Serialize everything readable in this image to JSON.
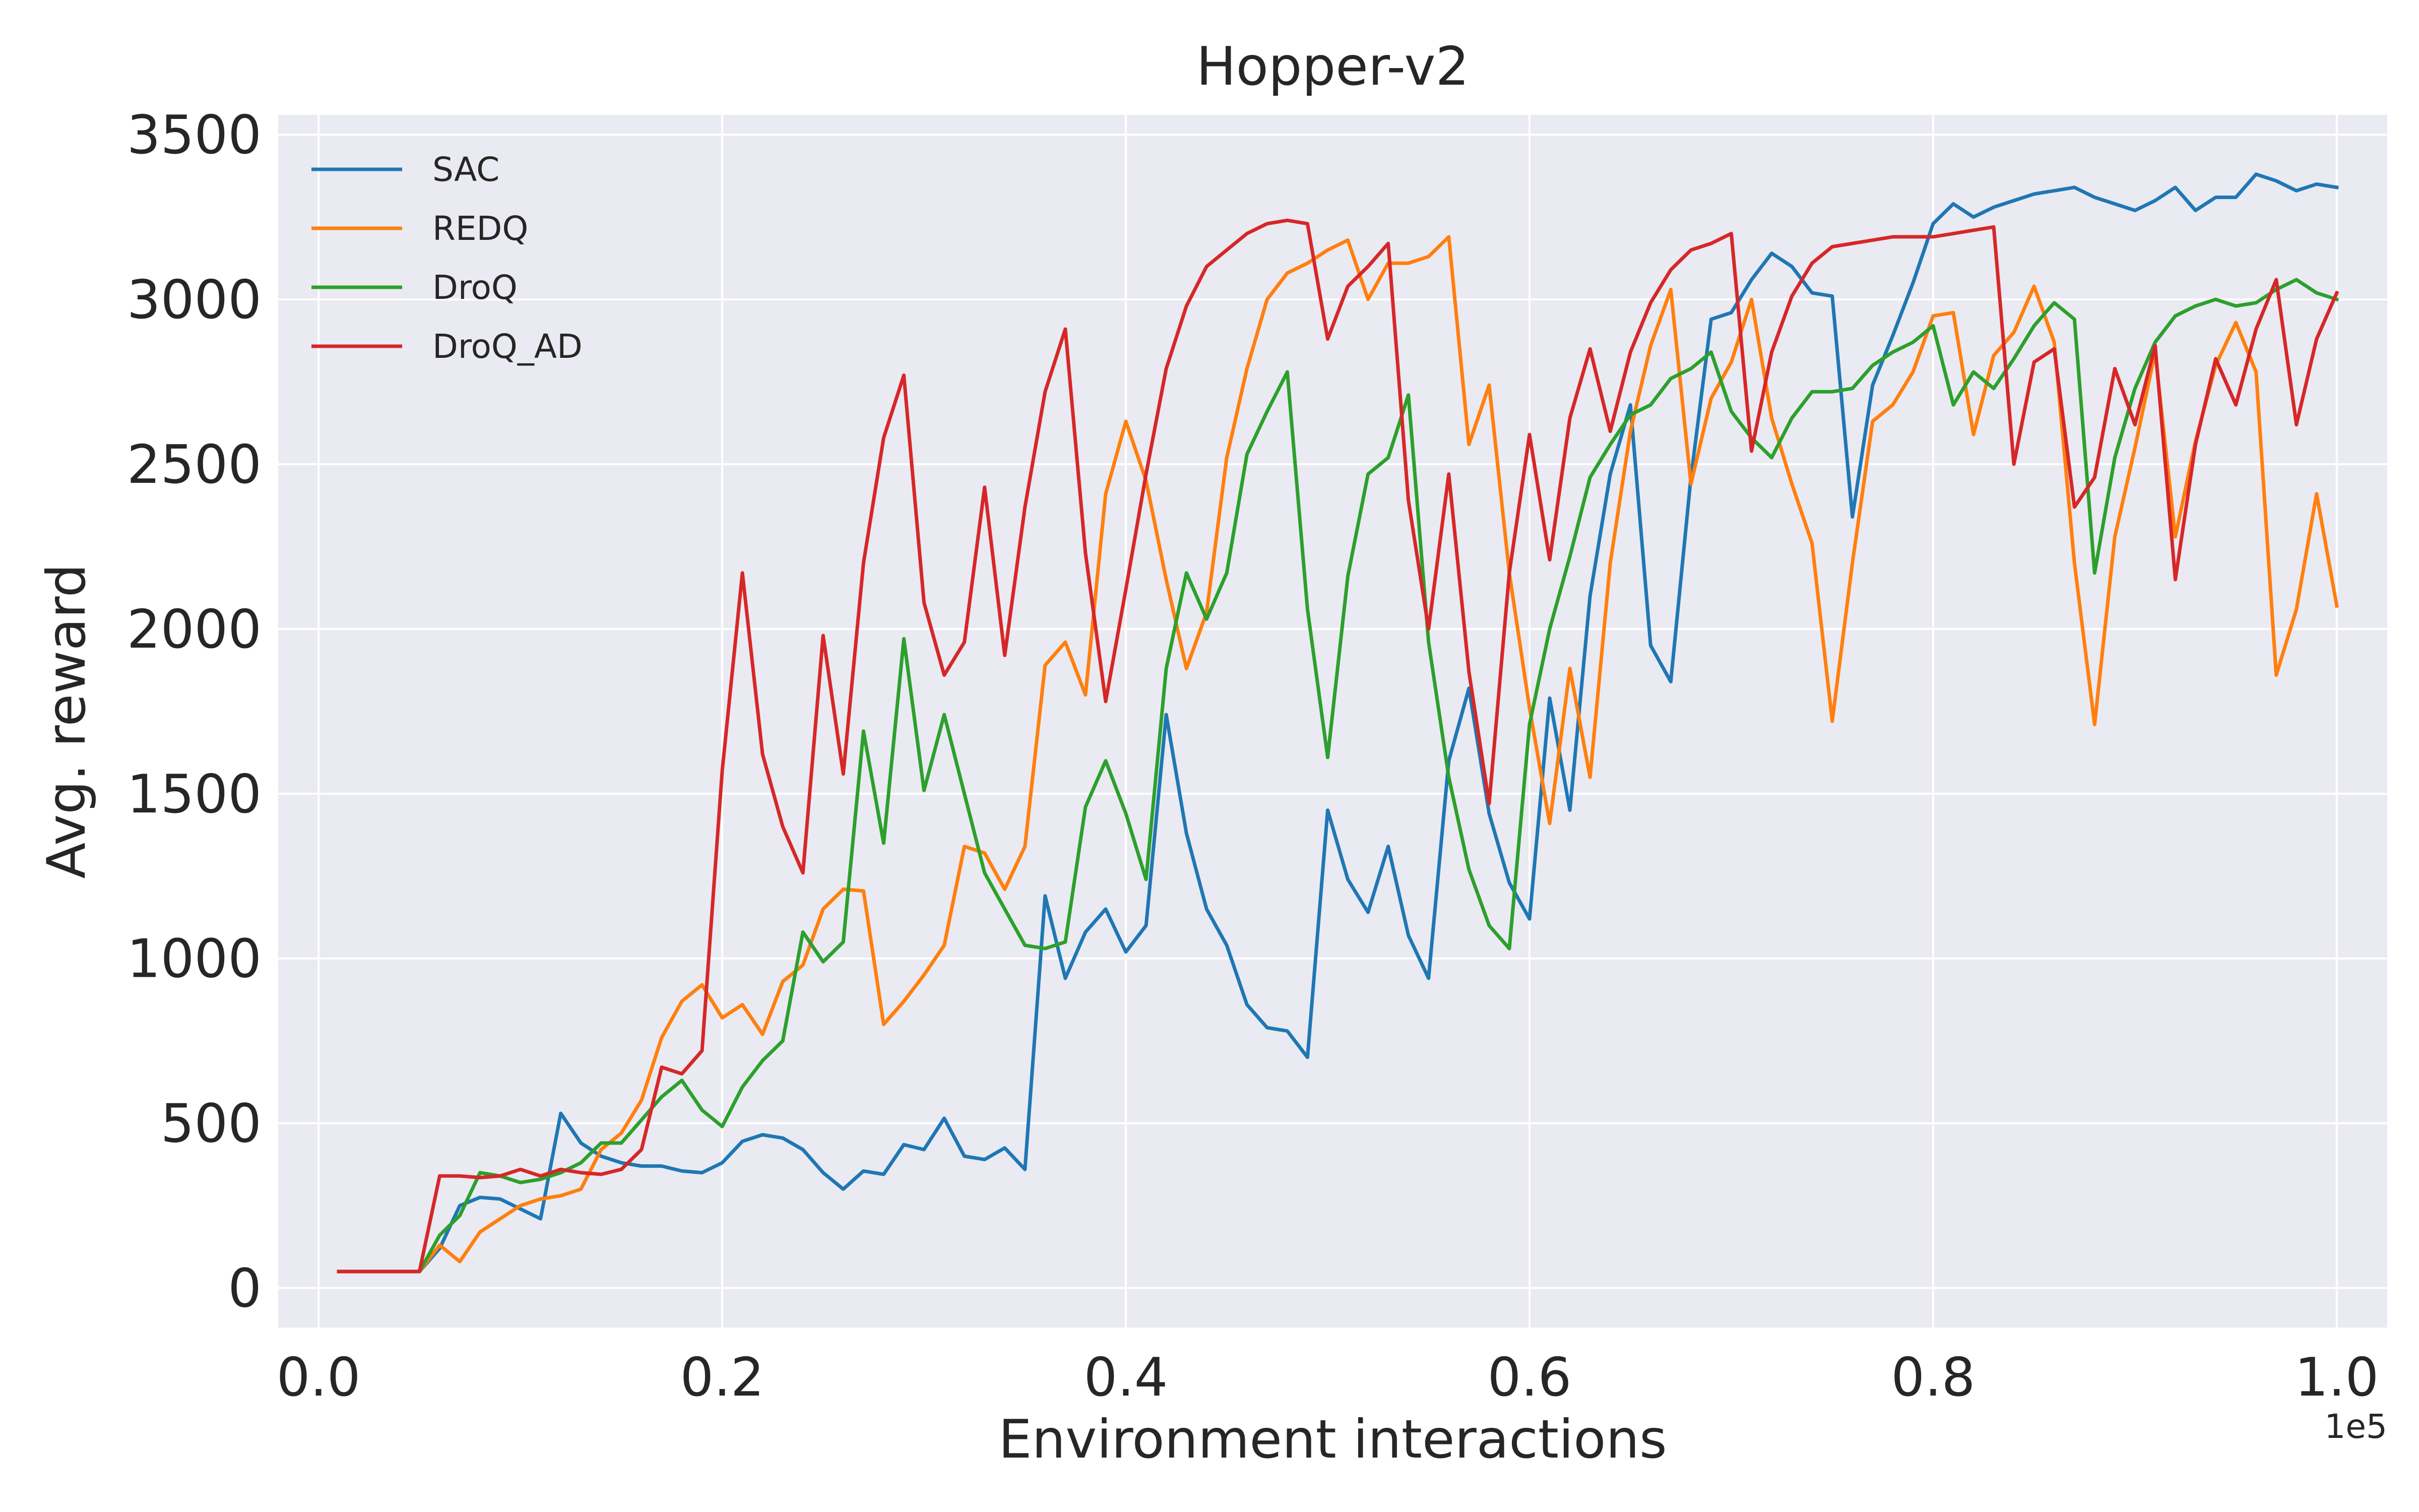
{
  "chart_data": {
    "type": "line",
    "title": "Hopper-v2",
    "xlabel": "Environment interactions",
    "ylabel": "Avg. reward",
    "x_offset_label": "1e5",
    "xlim": [
      -0.02,
      1.025
    ],
    "ylim": [
      -120,
      3560
    ],
    "x_ticks": [
      0.0,
      0.2,
      0.4,
      0.6,
      0.8,
      1.0
    ],
    "x_tick_labels": [
      "0.0",
      "0.2",
      "0.4",
      "0.6",
      "0.8",
      "1.0"
    ],
    "y_ticks": [
      0,
      500,
      1000,
      1500,
      2000,
      2500,
      3000,
      3500
    ],
    "y_tick_labels": [
      "0",
      "500",
      "1000",
      "1500",
      "2000",
      "2500",
      "3000",
      "3500"
    ],
    "grid": true,
    "legend_position": "top-left",
    "colors": {
      "background": "#eaeaf2",
      "grid": "#ffffff"
    },
    "x": [
      0.01,
      0.02,
      0.03,
      0.04,
      0.05,
      0.06,
      0.07,
      0.08,
      0.09,
      0.1,
      0.11,
      0.12,
      0.13,
      0.14,
      0.15,
      0.16,
      0.17,
      0.18,
      0.19,
      0.2,
      0.21,
      0.22,
      0.23,
      0.24,
      0.25,
      0.26,
      0.27,
      0.28,
      0.29,
      0.3,
      0.31,
      0.32,
      0.33,
      0.34,
      0.35,
      0.36,
      0.37,
      0.38,
      0.39,
      0.4,
      0.41,
      0.42,
      0.43,
      0.44,
      0.45,
      0.46,
      0.47,
      0.48,
      0.49,
      0.5,
      0.51,
      0.52,
      0.53,
      0.54,
      0.55,
      0.56,
      0.57,
      0.58,
      0.59,
      0.6,
      0.61,
      0.62,
      0.63,
      0.64,
      0.65,
      0.66,
      0.67,
      0.68,
      0.69,
      0.7,
      0.71,
      0.72,
      0.73,
      0.74,
      0.75,
      0.76,
      0.77,
      0.78,
      0.79,
      0.8,
      0.81,
      0.82,
      0.83,
      0.84,
      0.85,
      0.86,
      0.87,
      0.88,
      0.89,
      0.9,
      0.91,
      0.92,
      0.93,
      0.94,
      0.95,
      0.96,
      0.97,
      0.98,
      0.99,
      1.0
    ],
    "series": [
      {
        "name": "SAC",
        "color": "#1f77b4",
        "values": [
          50,
          50,
          50,
          50,
          50,
          120,
          250,
          275,
          270,
          240,
          210,
          530,
          440,
          400,
          380,
          370,
          370,
          355,
          350,
          380,
          445,
          465,
          455,
          420,
          350,
          300,
          355,
          345,
          435,
          420,
          515,
          400,
          390,
          425,
          360,
          1190,
          940,
          1080,
          1150,
          1020,
          1100,
          1740,
          1380,
          1150,
          1040,
          860,
          790,
          780,
          700,
          1450,
          1240,
          1140,
          1340,
          1070,
          940,
          1600,
          1820,
          1440,
          1230,
          1120,
          1790,
          1450,
          2100,
          2470,
          2680,
          1950,
          1840,
          2460,
          2940,
          2960,
          3060,
          3140,
          3100,
          3020,
          3010,
          2340,
          2740,
          2890,
          3050,
          3230,
          3290,
          3250,
          3280,
          3300,
          3320,
          3330,
          3340,
          3310,
          3290,
          3270,
          3300,
          3340,
          3270,
          3310,
          3310,
          3380,
          3360,
          3330,
          3350,
          3340
        ]
      },
      {
        "name": "REDQ",
        "color": "#ff7f0e",
        "values": [
          50,
          50,
          50,
          50,
          50,
          130,
          80,
          170,
          210,
          250,
          270,
          280,
          300,
          420,
          470,
          570,
          760,
          870,
          920,
          820,
          860,
          770,
          930,
          980,
          1150,
          1210,
          1205,
          800,
          870,
          950,
          1040,
          1340,
          1320,
          1210,
          1340,
          1890,
          1960,
          1800,
          2410,
          2630,
          2450,
          2150,
          1880,
          2050,
          2520,
          2790,
          3000,
          3080,
          3110,
          3150,
          3180,
          3000,
          3110,
          3110,
          3130,
          3190,
          2560,
          2740,
          2170,
          1760,
          1410,
          1880,
          1550,
          2200,
          2600,
          2860,
          3030,
          2440,
          2700,
          2810,
          3000,
          2640,
          2440,
          2260,
          1720,
          2200,
          2630,
          2680,
          2780,
          2950,
          2960,
          2590,
          2830,
          2900,
          3040,
          2870,
          2200,
          1710,
          2280,
          2550,
          2840,
          2280,
          2570,
          2800,
          2930,
          2780,
          1860,
          2060,
          2410,
          2070
        ]
      },
      {
        "name": "DroQ",
        "color": "#2ca02c",
        "values": [
          50,
          50,
          50,
          50,
          50,
          160,
          220,
          350,
          340,
          320,
          330,
          350,
          380,
          440,
          440,
          510,
          580,
          630,
          540,
          490,
          610,
          690,
          750,
          1080,
          990,
          1050,
          1690,
          1350,
          1970,
          1510,
          1740,
          1500,
          1260,
          1150,
          1040,
          1030,
          1050,
          1460,
          1600,
          1440,
          1240,
          1880,
          2170,
          2030,
          2170,
          2530,
          2660,
          2780,
          2060,
          1610,
          2160,
          2470,
          2520,
          2710,
          1960,
          1550,
          1270,
          1100,
          1030,
          1710,
          2000,
          2220,
          2460,
          2560,
          2650,
          2680,
          2760,
          2790,
          2840,
          2660,
          2580,
          2520,
          2640,
          2720,
          2720,
          2730,
          2800,
          2840,
          2870,
          2920,
          2680,
          2780,
          2730,
          2820,
          2920,
          2990,
          2940,
          2170,
          2520,
          2730,
          2870,
          2950,
          2980,
          3000,
          2980,
          2990,
          3030,
          3060,
          3020,
          3000
        ]
      },
      {
        "name": "DroQ_AD",
        "color": "#d62728",
        "values": [
          50,
          50,
          50,
          50,
          50,
          340,
          340,
          335,
          340,
          360,
          340,
          360,
          350,
          345,
          360,
          420,
          670,
          650,
          720,
          1570,
          2170,
          1620,
          1400,
          1260,
          1980,
          1560,
          2200,
          2580,
          2770,
          2080,
          1860,
          1960,
          2430,
          1920,
          2370,
          2720,
          2910,
          2230,
          1780,
          2120,
          2470,
          2790,
          2980,
          3100,
          3150,
          3200,
          3230,
          3240,
          3230,
          2880,
          3040,
          3100,
          3170,
          2390,
          2000,
          2470,
          1870,
          1470,
          2170,
          2590,
          2210,
          2640,
          2850,
          2600,
          2840,
          2990,
          3090,
          3150,
          3170,
          3200,
          2540,
          2840,
          3010,
          3110,
          3160,
          3170,
          3180,
          3190,
          3190,
          3190,
          3200,
          3210,
          3220,
          2500,
          2810,
          2850,
          2370,
          2460,
          2790,
          2620,
          2860,
          2150,
          2560,
          2820,
          2680,
          2910,
          3060,
          2620,
          2880,
          3020
        ]
      }
    ]
  }
}
